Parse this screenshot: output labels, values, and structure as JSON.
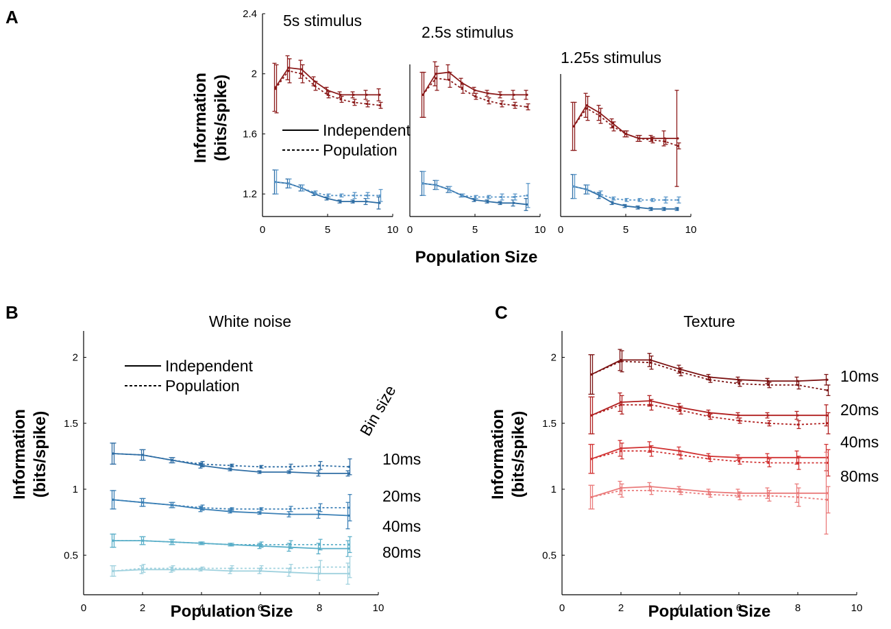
{
  "panels": {
    "A": {
      "letter": "A"
    },
    "B": {
      "letter": "B"
    },
    "C": {
      "letter": "C"
    }
  },
  "legend": {
    "independent": "Independent",
    "population": "Population"
  },
  "chart_data": [
    {
      "panel": "A",
      "title": "5s stimulus",
      "type": "line",
      "xlabel": "Population Size",
      "ylabel": [
        "Information",
        "(bits/spike)"
      ],
      "xlim": [
        0,
        10
      ],
      "ylim": [
        1.05,
        2.4
      ],
      "xticks": [
        "0",
        "5",
        "10"
      ],
      "yticks": [
        "1.2",
        "1.6",
        "2",
        "2.4"
      ],
      "x": [
        1,
        2,
        3,
        4,
        5,
        6,
        7,
        8,
        9
      ],
      "series": [
        {
          "name": "Texture Independent",
          "color": "#8b1a1a",
          "style": "solid",
          "values": [
            1.91,
            2.04,
            2.03,
            1.95,
            1.89,
            1.86,
            1.86,
            1.86,
            1.86
          ],
          "err": [
            0.16,
            0.08,
            0.06,
            0.03,
            0.02,
            0.02,
            0.02,
            0.03,
            0.04
          ]
        },
        {
          "name": "Texture Population",
          "color": "#8b1a1a",
          "style": "dashed",
          "values": [
            1.9,
            2.02,
            2.0,
            1.92,
            1.86,
            1.83,
            1.81,
            1.8,
            1.79
          ],
          "err": [
            0.16,
            0.08,
            0.06,
            0.03,
            0.02,
            0.02,
            0.02,
            0.02,
            0.02
          ]
        },
        {
          "name": "White noise Independent",
          "color": "#2e6da4",
          "style": "solid",
          "values": [
            1.28,
            1.27,
            1.24,
            1.2,
            1.17,
            1.15,
            1.15,
            1.15,
            1.14
          ],
          "err": [
            0.08,
            0.03,
            0.02,
            0.01,
            0.01,
            0.01,
            0.01,
            0.02,
            0.04
          ]
        },
        {
          "name": "White noise Population",
          "color": "#5a96c8",
          "style": "dashed",
          "values": [
            1.28,
            1.27,
            1.24,
            1.21,
            1.19,
            1.19,
            1.19,
            1.19,
            1.19
          ],
          "err": [
            0.08,
            0.03,
            0.02,
            0.01,
            0.01,
            0.01,
            0.02,
            0.02,
            0.04
          ]
        }
      ]
    },
    {
      "panel": "A",
      "title": "2.5s stimulus",
      "type": "line",
      "xlabel": "Population Size",
      "ylabel": [
        "Information",
        "(bits/spike)"
      ],
      "xlim": [
        0,
        10
      ],
      "ylim": [
        1.05,
        2.4
      ],
      "xticks": [
        "0",
        "5",
        "10"
      ],
      "yticks": [],
      "x": [
        1,
        2,
        3,
        4,
        5,
        6,
        7,
        8,
        9
      ],
      "series": [
        {
          "name": "Texture Independent",
          "color": "#8b1a1a",
          "style": "solid",
          "values": [
            1.86,
            2.0,
            2.01,
            1.94,
            1.89,
            1.87,
            1.86,
            1.86,
            1.86
          ],
          "err": [
            0.15,
            0.08,
            0.05,
            0.03,
            0.02,
            0.02,
            0.02,
            0.03,
            0.03
          ]
        },
        {
          "name": "Texture Population",
          "color": "#8b1a1a",
          "style": "dashed",
          "values": [
            1.86,
            1.97,
            1.96,
            1.9,
            1.85,
            1.82,
            1.8,
            1.79,
            1.78
          ],
          "err": [
            0.15,
            0.08,
            0.05,
            0.03,
            0.02,
            0.02,
            0.02,
            0.02,
            0.02
          ]
        },
        {
          "name": "White noise Independent",
          "color": "#2e6da4",
          "style": "solid",
          "values": [
            1.27,
            1.26,
            1.23,
            1.19,
            1.16,
            1.15,
            1.14,
            1.14,
            1.13
          ],
          "err": [
            0.08,
            0.03,
            0.02,
            0.01,
            0.01,
            0.01,
            0.01,
            0.02,
            0.04
          ]
        },
        {
          "name": "White noise Population",
          "color": "#5a96c8",
          "style": "dashed",
          "values": [
            1.27,
            1.26,
            1.23,
            1.19,
            1.18,
            1.18,
            1.18,
            1.18,
            1.19
          ],
          "err": [
            0.08,
            0.03,
            0.02,
            0.01,
            0.01,
            0.01,
            0.02,
            0.02,
            0.08
          ]
        }
      ]
    },
    {
      "panel": "A",
      "title": "1.25s stimulus",
      "type": "line",
      "xlabel": "Population Size",
      "ylabel": [
        "Information",
        "(bits/spike)"
      ],
      "xlim": [
        0,
        10
      ],
      "ylim": [
        1.05,
        2.4
      ],
      "xticks": [
        "0",
        "5",
        "10"
      ],
      "yticks": [],
      "x": [
        1,
        2,
        3,
        4,
        5,
        6,
        7,
        8,
        9
      ],
      "series": [
        {
          "name": "Texture Independent",
          "color": "#8b1a1a",
          "style": "solid",
          "values": [
            1.65,
            1.79,
            1.74,
            1.67,
            1.6,
            1.57,
            1.57,
            1.57,
            1.57
          ],
          "err": [
            0.16,
            0.08,
            0.05,
            0.03,
            0.02,
            0.02,
            0.02,
            0.05,
            0.32
          ]
        },
        {
          "name": "Texture Population",
          "color": "#8b1a1a",
          "style": "dashed",
          "values": [
            1.65,
            1.77,
            1.72,
            1.65,
            1.6,
            1.57,
            1.56,
            1.55,
            1.52
          ],
          "err": [
            0.16,
            0.08,
            0.05,
            0.03,
            0.02,
            0.02,
            0.02,
            0.02,
            0.02
          ]
        },
        {
          "name": "White noise Independent",
          "color": "#2e6da4",
          "style": "solid",
          "values": [
            1.25,
            1.23,
            1.19,
            1.14,
            1.12,
            1.11,
            1.1,
            1.1,
            1.1
          ],
          "err": [
            0.08,
            0.03,
            0.02,
            0.01,
            0.01,
            0.01,
            0.01,
            0.01,
            0.01
          ]
        },
        {
          "name": "White noise Population",
          "color": "#5a96c8",
          "style": "dashed",
          "values": [
            1.25,
            1.23,
            1.2,
            1.17,
            1.16,
            1.16,
            1.16,
            1.16,
            1.16
          ],
          "err": [
            0.08,
            0.03,
            0.02,
            0.01,
            0.01,
            0.01,
            0.01,
            0.02,
            0.02
          ]
        }
      ]
    },
    {
      "panel": "B",
      "title": "White noise",
      "title_color": "#2e6da4",
      "type": "line",
      "xlabel": "Population Size",
      "ylabel": [
        "Information",
        "(bits/spike)"
      ],
      "xlim": [
        0,
        10
      ],
      "ylim": [
        0.2,
        2.2
      ],
      "xticks": [
        "0",
        "2",
        "4",
        "6",
        "8",
        "10"
      ],
      "yticks": [
        "0.5",
        "1",
        "1.5",
        "2"
      ],
      "bin_size_label": "Bin size",
      "bin_labels": [
        "10ms",
        "20ms",
        "40ms",
        "80ms"
      ],
      "x": [
        1,
        2,
        3,
        4,
        5,
        6,
        7,
        8,
        9
      ],
      "series": [
        {
          "name": "10ms Independent",
          "color": "#2e6da4",
          "style": "solid",
          "values": [
            1.27,
            1.26,
            1.22,
            1.18,
            1.15,
            1.13,
            1.13,
            1.12,
            1.12
          ],
          "err": [
            0.08,
            0.04,
            0.02,
            0.02,
            0.01,
            0.01,
            0.01,
            0.02,
            0.02
          ]
        },
        {
          "name": "10ms Population",
          "color": "#2e6da4",
          "style": "dashed",
          "values": [
            1.27,
            1.26,
            1.22,
            1.19,
            1.18,
            1.17,
            1.17,
            1.18,
            1.17
          ],
          "err": [
            0.08,
            0.04,
            0.02,
            0.02,
            0.01,
            0.01,
            0.02,
            0.03,
            0.06
          ]
        },
        {
          "name": "20ms Independent",
          "color": "#3a7fb5",
          "style": "solid",
          "values": [
            0.92,
            0.9,
            0.88,
            0.85,
            0.83,
            0.82,
            0.81,
            0.81,
            0.8
          ],
          "err": [
            0.07,
            0.03,
            0.02,
            0.02,
            0.01,
            0.01,
            0.02,
            0.03,
            0.1
          ]
        },
        {
          "name": "20ms Population",
          "color": "#3a7fb5",
          "style": "dashed",
          "values": [
            0.92,
            0.9,
            0.88,
            0.86,
            0.85,
            0.85,
            0.85,
            0.86,
            0.86
          ],
          "err": [
            0.07,
            0.03,
            0.02,
            0.02,
            0.01,
            0.01,
            0.02,
            0.03,
            0.1
          ]
        },
        {
          "name": "40ms Independent",
          "color": "#59aec8",
          "style": "solid",
          "values": [
            0.61,
            0.61,
            0.6,
            0.59,
            0.58,
            0.57,
            0.56,
            0.55,
            0.55
          ],
          "err": [
            0.05,
            0.03,
            0.02,
            0.01,
            0.01,
            0.02,
            0.03,
            0.04,
            0.06
          ]
        },
        {
          "name": "40ms Population",
          "color": "#59aec8",
          "style": "dashed",
          "values": [
            0.61,
            0.61,
            0.6,
            0.59,
            0.58,
            0.58,
            0.58,
            0.58,
            0.58
          ],
          "err": [
            0.05,
            0.03,
            0.02,
            0.01,
            0.01,
            0.02,
            0.03,
            0.04,
            0.06
          ]
        },
        {
          "name": "80ms Independent",
          "color": "#9fd1de",
          "style": "solid",
          "values": [
            0.38,
            0.39,
            0.39,
            0.39,
            0.38,
            0.38,
            0.37,
            0.36,
            0.36
          ],
          "err": [
            0.04,
            0.03,
            0.02,
            0.01,
            0.02,
            0.02,
            0.03,
            0.05,
            0.08
          ]
        },
        {
          "name": "80ms Population",
          "color": "#9fd1de",
          "style": "dashed",
          "values": [
            0.38,
            0.4,
            0.4,
            0.4,
            0.4,
            0.4,
            0.4,
            0.41,
            0.41
          ],
          "err": [
            0.04,
            0.03,
            0.02,
            0.01,
            0.02,
            0.02,
            0.03,
            0.05,
            0.08
          ]
        }
      ]
    },
    {
      "panel": "C",
      "title": "Texture",
      "title_color": "#8b1a1a",
      "type": "line",
      "xlabel": "Population Size",
      "ylabel": [
        "Information",
        "(bits/spike)"
      ],
      "xlim": [
        0,
        10
      ],
      "ylim": [
        0.2,
        2.2
      ],
      "xticks": [
        "0",
        "2",
        "4",
        "6",
        "8",
        "10"
      ],
      "yticks": [
        "0.5",
        "1",
        "1.5",
        "2"
      ],
      "bin_labels": [
        "10ms",
        "20ms",
        "40ms",
        "80ms"
      ],
      "x": [
        1,
        2,
        3,
        4,
        5,
        6,
        7,
        8,
        9
      ],
      "series": [
        {
          "name": "10ms Independent",
          "color": "#7a1010",
          "style": "solid",
          "values": [
            1.87,
            1.98,
            1.98,
            1.91,
            1.85,
            1.83,
            1.82,
            1.82,
            1.83
          ],
          "err": [
            0.15,
            0.08,
            0.05,
            0.03,
            0.02,
            0.02,
            0.02,
            0.03,
            0.04
          ]
        },
        {
          "name": "10ms Population",
          "color": "#7a1010",
          "style": "dashed",
          "values": [
            1.87,
            1.97,
            1.96,
            1.89,
            1.83,
            1.8,
            1.79,
            1.79,
            1.75
          ],
          "err": [
            0.15,
            0.08,
            0.05,
            0.03,
            0.02,
            0.02,
            0.02,
            0.03,
            0.04
          ]
        },
        {
          "name": "20ms Independent",
          "color": "#b01e1e",
          "style": "solid",
          "values": [
            1.56,
            1.66,
            1.67,
            1.62,
            1.58,
            1.56,
            1.56,
            1.56,
            1.56
          ],
          "err": [
            0.14,
            0.07,
            0.04,
            0.03,
            0.02,
            0.02,
            0.02,
            0.03,
            0.08
          ]
        },
        {
          "name": "20ms Population",
          "color": "#b01e1e",
          "style": "dashed",
          "values": [
            1.56,
            1.64,
            1.64,
            1.6,
            1.55,
            1.52,
            1.5,
            1.49,
            1.5
          ],
          "err": [
            0.14,
            0.07,
            0.04,
            0.03,
            0.02,
            0.02,
            0.02,
            0.03,
            0.08
          ]
        },
        {
          "name": "40ms Independent",
          "color": "#d13232",
          "style": "solid",
          "values": [
            1.23,
            1.31,
            1.32,
            1.29,
            1.25,
            1.24,
            1.24,
            1.24,
            1.24
          ],
          "err": [
            0.11,
            0.06,
            0.04,
            0.03,
            0.02,
            0.02,
            0.03,
            0.05,
            0.1
          ]
        },
        {
          "name": "40ms Population",
          "color": "#d13232",
          "style": "dashed",
          "values": [
            1.23,
            1.29,
            1.29,
            1.26,
            1.23,
            1.21,
            1.2,
            1.2,
            1.2
          ],
          "err": [
            0.11,
            0.06,
            0.04,
            0.03,
            0.02,
            0.02,
            0.03,
            0.05,
            0.1
          ]
        },
        {
          "name": "80ms Independent",
          "color": "#ea7a7a",
          "style": "solid",
          "values": [
            0.94,
            1.01,
            1.02,
            1.0,
            0.98,
            0.97,
            0.97,
            0.97,
            0.97
          ],
          "err": [
            0.09,
            0.05,
            0.03,
            0.02,
            0.02,
            0.03,
            0.04,
            0.07,
            0.31
          ]
        },
        {
          "name": "80ms Population",
          "color": "#ea7a7a",
          "style": "dashed",
          "values": [
            0.94,
            0.99,
            0.99,
            0.98,
            0.96,
            0.95,
            0.95,
            0.94,
            0.92
          ],
          "err": [
            0.09,
            0.05,
            0.03,
            0.02,
            0.02,
            0.03,
            0.04,
            0.07,
            0.1
          ]
        }
      ]
    }
  ]
}
